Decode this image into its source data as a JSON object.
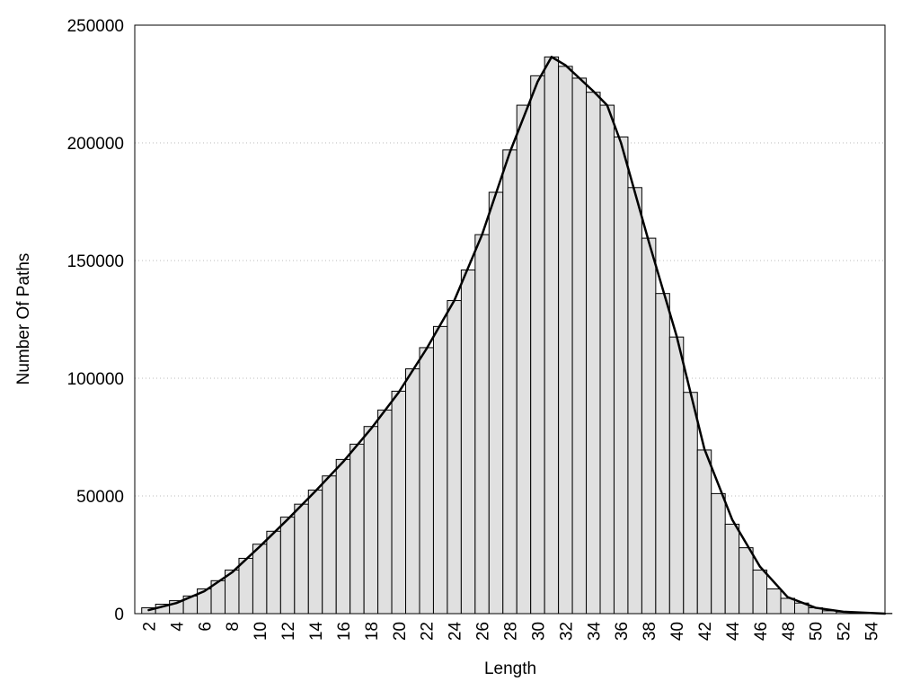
{
  "chart_data": {
    "type": "bar",
    "x_label": "Length",
    "y_label": "Number Of Paths",
    "x": [
      2,
      3,
      4,
      5,
      6,
      7,
      8,
      9,
      10,
      11,
      12,
      13,
      14,
      15,
      16,
      17,
      18,
      19,
      20,
      21,
      22,
      23,
      24,
      25,
      26,
      27,
      28,
      29,
      30,
      31,
      32,
      33,
      34,
      35,
      36,
      37,
      38,
      39,
      40,
      41,
      42,
      43,
      44,
      45,
      46,
      47,
      48,
      49,
      50,
      51,
      52,
      53,
      54,
      55
    ],
    "values": [
      2500,
      4000,
      5500,
      7500,
      10500,
      14000,
      18500,
      23500,
      29500,
      35000,
      41000,
      46500,
      52500,
      58500,
      65500,
      72000,
      79500,
      86500,
      94500,
      104000,
      113000,
      122000,
      133000,
      146000,
      161000,
      179000,
      197000,
      216000,
      228500,
      236500,
      232500,
      227500,
      221500,
      216000,
      202500,
      181000,
      159500,
      136000,
      117500,
      94000,
      69500,
      51000,
      38000,
      28000,
      18500,
      10500,
      6500,
      4500,
      2500,
      1200,
      700,
      400,
      200,
      100
    ],
    "color": "#e0e0e0",
    "curve": {
      "x": [
        2,
        4,
        6,
        8,
        10,
        12,
        14,
        16,
        18,
        20,
        22,
        24,
        26,
        28,
        30,
        31,
        32,
        34,
        35,
        36,
        38,
        40,
        42,
        44,
        46,
        48,
        50,
        52,
        55
      ],
      "values": [
        1500,
        4500,
        9500,
        17500,
        28500,
        40000,
        52000,
        64500,
        78500,
        94000,
        112500,
        133000,
        161000,
        196000,
        226000,
        236500,
        233000,
        222000,
        216000,
        200000,
        158000,
        118000,
        70000,
        40000,
        20000,
        7000,
        2500,
        800,
        0
      ],
      "color": "#000000"
    },
    "xlim": [
      1,
      55
    ],
    "xticks": [
      2,
      4,
      6,
      8,
      10,
      12,
      14,
      16,
      18,
      20,
      22,
      24,
      26,
      28,
      30,
      32,
      34,
      36,
      38,
      40,
      42,
      44,
      46,
      48,
      50,
      52,
      54
    ],
    "ylim": [
      0,
      250000
    ],
    "yticks": [
      0,
      50000,
      100000,
      150000,
      200000,
      250000
    ],
    "grid": true
  }
}
